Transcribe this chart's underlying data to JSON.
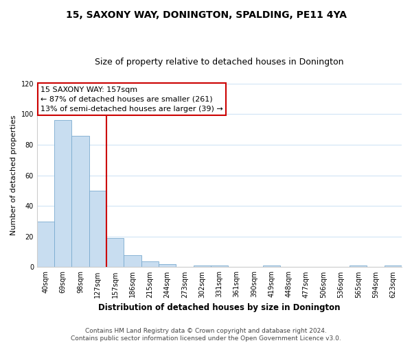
{
  "title": "15, SAXONY WAY, DONINGTON, SPALDING, PE11 4YA",
  "subtitle": "Size of property relative to detached houses in Donington",
  "xlabel": "Distribution of detached houses by size in Donington",
  "ylabel": "Number of detached properties",
  "bin_labels": [
    "40sqm",
    "69sqm",
    "98sqm",
    "127sqm",
    "157sqm",
    "186sqm",
    "215sqm",
    "244sqm",
    "273sqm",
    "302sqm",
    "331sqm",
    "361sqm",
    "390sqm",
    "419sqm",
    "448sqm",
    "477sqm",
    "506sqm",
    "536sqm",
    "565sqm",
    "594sqm",
    "623sqm"
  ],
  "bar_heights": [
    30,
    96,
    86,
    50,
    19,
    8,
    4,
    2,
    0,
    1,
    1,
    0,
    0,
    1,
    0,
    0,
    0,
    0,
    1,
    0,
    1
  ],
  "bar_color": "#c8ddf0",
  "bar_edge_color": "#7aabcf",
  "vline_x_index": 4,
  "vline_color": "#cc0000",
  "annotation_line1": "15 SAXONY WAY: 157sqm",
  "annotation_line2": "← 87% of detached houses are smaller (261)",
  "annotation_line3": "13% of semi-detached houses are larger (39) →",
  "box_edge_color": "#cc0000",
  "ylim": [
    0,
    120
  ],
  "yticks": [
    0,
    20,
    40,
    60,
    80,
    100,
    120
  ],
  "footer_line1": "Contains HM Land Registry data © Crown copyright and database right 2024.",
  "footer_line2": "Contains public sector information licensed under the Open Government Licence v3.0.",
  "title_fontsize": 10,
  "subtitle_fontsize": 9,
  "xlabel_fontsize": 8.5,
  "ylabel_fontsize": 8,
  "tick_fontsize": 7,
  "annotation_fontsize": 8,
  "footer_fontsize": 6.5
}
